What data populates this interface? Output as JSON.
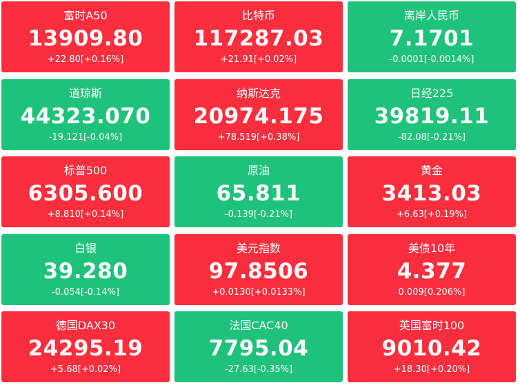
{
  "colors": {
    "up": "#fc2e3e",
    "down": "#1ec27a",
    "text": "#ffffff"
  },
  "tiles": [
    {
      "name": "富时A50",
      "price": "13909.80",
      "change": "+22.80[+0.16%]",
      "trend": "up"
    },
    {
      "name": "比特币",
      "price": "117287.03",
      "change": "+21.91[+0.02%]",
      "trend": "up"
    },
    {
      "name": "离岸人民币",
      "price": "7.1701",
      "change": "-0.0001[-0.0014%]",
      "trend": "down"
    },
    {
      "name": "道琼斯",
      "price": "44323.070",
      "change": "-19.121[-0.04%]",
      "trend": "down"
    },
    {
      "name": "纳斯达克",
      "price": "20974.175",
      "change": "+78.519[+0.38%]",
      "trend": "up"
    },
    {
      "name": "日经225",
      "price": "39819.11",
      "change": "-82.08[-0.21%]",
      "trend": "down"
    },
    {
      "name": "标普500",
      "price": "6305.600",
      "change": "+8.810[+0.14%]",
      "trend": "up"
    },
    {
      "name": "原油",
      "price": "65.811",
      "change": "-0.139[-0.21%]",
      "trend": "down"
    },
    {
      "name": "黄金",
      "price": "3413.03",
      "change": "+6.63[+0.19%]",
      "trend": "up"
    },
    {
      "name": "白银",
      "price": "39.280",
      "change": "-0.054[-0.14%]",
      "trend": "down"
    },
    {
      "name": "美元指数",
      "price": "97.8506",
      "change": "+0.0130[+0.0133%]",
      "trend": "up"
    },
    {
      "name": "美债10年",
      "price": "4.377",
      "change": "0.009[0.206%]",
      "trend": "up"
    },
    {
      "name": "德国DAX30",
      "price": "24295.19",
      "change": "+5.68[+0.02%]",
      "trend": "up"
    },
    {
      "name": "法国CAC40",
      "price": "7795.04",
      "change": "-27.63[-0.35%]",
      "trend": "down"
    },
    {
      "name": "英国富时100",
      "price": "9010.42",
      "change": "+18.30[+0.20%]",
      "trend": "up"
    }
  ]
}
